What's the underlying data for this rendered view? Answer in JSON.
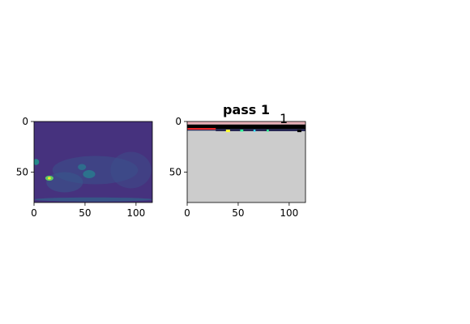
{
  "chart_data": [
    {
      "type": "heatmap",
      "title": "",
      "xlabel": "",
      "ylabel": "",
      "xlim": [
        0,
        116
      ],
      "ylim": [
        80,
        0
      ],
      "xticks": [
        0,
        50,
        100
      ],
      "yticks": [
        0,
        50
      ],
      "colormap": "viridis",
      "background_color": "#46327e",
      "features": [
        {
          "x": 60,
          "y": 48,
          "rx": 42,
          "ry": 14,
          "color": "#3b528b",
          "opacity": 0.55
        },
        {
          "x": 95,
          "y": 48,
          "rx": 20,
          "ry": 18,
          "color": "#3b528b",
          "opacity": 0.45
        },
        {
          "x": 30,
          "y": 60,
          "rx": 18,
          "ry": 10,
          "color": "#365c8d",
          "opacity": 0.5
        },
        {
          "x": 54,
          "y": 52,
          "rx": 6,
          "ry": 4,
          "color": "#2a788e",
          "opacity": 0.9
        },
        {
          "x": 47,
          "y": 45,
          "rx": 4,
          "ry": 3,
          "color": "#2a788e",
          "opacity": 0.8
        },
        {
          "x": 2,
          "y": 40,
          "rx": 3,
          "ry": 3,
          "color": "#21918c",
          "opacity": 0.9
        },
        {
          "x": 15,
          "y": 56,
          "rx": 4,
          "ry": 2.5,
          "color": "#5ec962",
          "opacity": 1
        },
        {
          "x": 15,
          "y": 56,
          "rx": 1.5,
          "ry": 1.2,
          "color": "#fde725",
          "opacity": 1
        },
        {
          "x": 58,
          "y": 77,
          "rx": 58,
          "ry": 2,
          "color": "#2c728e",
          "opacity": 0.55
        }
      ]
    },
    {
      "type": "heatmap",
      "title": "pass 1",
      "offset_label": "1",
      "xlabel": "",
      "ylabel": "",
      "xlim": [
        0,
        116
      ],
      "ylim": [
        80,
        0
      ],
      "xticks": [
        0,
        50,
        100
      ],
      "yticks": [
        0,
        50
      ],
      "background_color": "#cccccc",
      "bands": [
        {
          "y0": 0,
          "y1": 3,
          "color": "#e8b0b8"
        },
        {
          "y0": 3,
          "y1": 7.5,
          "color": "#000000"
        },
        {
          "y0": 7.5,
          "y1": 9,
          "color": "#2d2d5e"
        }
      ],
      "highlights": [
        {
          "x0": 0,
          "x1": 28,
          "y0": 6.5,
          "y1": 8,
          "color": "#ff2a2a"
        },
        {
          "x0": 28,
          "x1": 116,
          "y0": 8,
          "y1": 9.5,
          "color": "#1a1a4a"
        },
        {
          "x0": 38,
          "x1": 42,
          "y0": 8,
          "y1": 10.5,
          "color": "#ffff33"
        },
        {
          "x0": 52,
          "x1": 55,
          "y0": 8,
          "y1": 10,
          "color": "#33ff99"
        },
        {
          "x0": 65,
          "x1": 67,
          "y0": 8,
          "y1": 10,
          "color": "#33ddff"
        },
        {
          "x0": 78,
          "x1": 80,
          "y0": 8,
          "y1": 10,
          "color": "#33ff99"
        },
        {
          "x0": 108,
          "x1": 112,
          "y0": 8,
          "y1": 10.5,
          "color": "#000000"
        }
      ]
    }
  ]
}
